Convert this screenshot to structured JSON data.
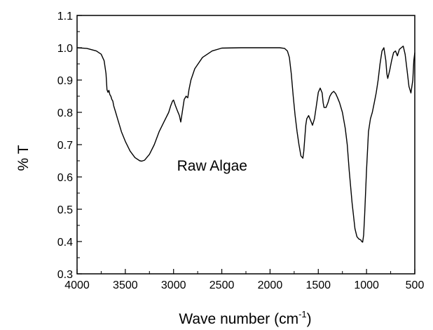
{
  "chart_data": {
    "type": "line",
    "title": "",
    "xlabel": "Wave number (cm",
    "xlabel_superscript": "-1",
    "xlabel_suffix": ")",
    "ylabel": "% T",
    "xlim": [
      4000,
      500
    ],
    "ylim": [
      0.3,
      1.1
    ],
    "x_reversed": true,
    "grid": false,
    "legend": "none",
    "line_color": "#000000",
    "x_ticks": [
      4000,
      3500,
      3000,
      2500,
      2000,
      1500,
      1000,
      500
    ],
    "x_tick_labels": [
      "4000",
      "3500",
      "3000",
      "2500",
      "2000",
      "1500",
      "1000",
      "500"
    ],
    "y_ticks": [
      0.3,
      0.4,
      0.5,
      0.6,
      0.7,
      0.8,
      0.9,
      1.0,
      1.1
    ],
    "y_tick_labels": [
      "0.3",
      "0.4",
      "0.5",
      "0.6",
      "0.7",
      "0.8",
      "0.9",
      "1.0",
      "1.1"
    ],
    "annotations": [
      {
        "text": "Raw Algae",
        "x": 2600,
        "y": 0.62
      }
    ],
    "series": [
      {
        "x": [
          4000,
          3900,
          3800,
          3750,
          3720,
          3700,
          3690,
          3680,
          3670,
          3660,
          3650,
          3640,
          3630,
          3620,
          3600,
          3580,
          3560,
          3540,
          3500,
          3450,
          3400,
          3350,
          3330,
          3300,
          3250,
          3200,
          3150,
          3100,
          3050,
          3030,
          3010,
          3000,
          2980,
          2960,
          2940,
          2925,
          2910,
          2890,
          2870,
          2853,
          2840,
          2820,
          2780,
          2700,
          2600,
          2500,
          2300,
          2000,
          1900,
          1850,
          1820,
          1800,
          1780,
          1760,
          1740,
          1720,
          1700,
          1680,
          1660,
          1650,
          1640,
          1630,
          1620,
          1600,
          1580,
          1560,
          1540,
          1520,
          1500,
          1480,
          1460,
          1450,
          1440,
          1420,
          1400,
          1380,
          1360,
          1340,
          1320,
          1300,
          1280,
          1250,
          1220,
          1200,
          1180,
          1150,
          1120,
          1100,
          1080,
          1060,
          1050,
          1040,
          1030,
          1020,
          1000,
          980,
          960,
          940,
          920,
          900,
          880,
          860,
          840,
          820,
          800,
          790,
          780,
          760,
          740,
          720,
          700,
          680,
          660,
          640,
          620,
          600,
          580,
          560,
          540,
          520,
          510,
          500
        ],
        "y": [
          1.0,
          0.998,
          0.99,
          0.98,
          0.96,
          0.92,
          0.87,
          0.862,
          0.868,
          0.855,
          0.85,
          0.84,
          0.835,
          0.82,
          0.8,
          0.78,
          0.76,
          0.74,
          0.71,
          0.68,
          0.66,
          0.65,
          0.649,
          0.652,
          0.67,
          0.7,
          0.74,
          0.77,
          0.8,
          0.82,
          0.835,
          0.838,
          0.82,
          0.805,
          0.79,
          0.77,
          0.8,
          0.84,
          0.85,
          0.845,
          0.87,
          0.9,
          0.935,
          0.97,
          0.99,
          0.999,
          1.0,
          1.0,
          1.0,
          0.998,
          0.99,
          0.97,
          0.92,
          0.85,
          0.79,
          0.74,
          0.7,
          0.665,
          0.658,
          0.68,
          0.72,
          0.76,
          0.78,
          0.79,
          0.775,
          0.76,
          0.78,
          0.82,
          0.862,
          0.875,
          0.86,
          0.83,
          0.815,
          0.815,
          0.83,
          0.85,
          0.86,
          0.865,
          0.858,
          0.845,
          0.83,
          0.8,
          0.75,
          0.7,
          0.62,
          0.52,
          0.44,
          0.415,
          0.408,
          0.405,
          0.4,
          0.398,
          0.42,
          0.48,
          0.62,
          0.74,
          0.78,
          0.8,
          0.83,
          0.86,
          0.9,
          0.95,
          0.99,
          1.0,
          0.96,
          0.92,
          0.905,
          0.93,
          0.96,
          0.985,
          0.99,
          0.975,
          0.995,
          1.0,
          1.005,
          0.98,
          0.93,
          0.88,
          0.86,
          0.9,
          0.96,
          0.985
        ]
      }
    ]
  }
}
